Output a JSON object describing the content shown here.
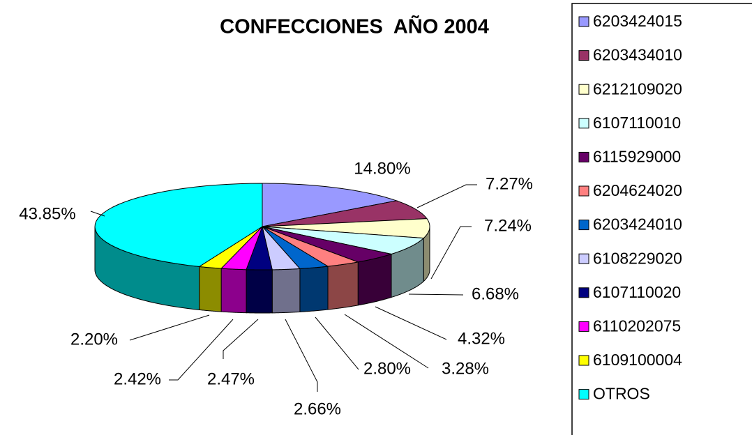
{
  "chart_data": {
    "type": "pie3d",
    "title": "CONFECCIONES  AÑO 2004",
    "categories": [
      "6203424015",
      "6203434010",
      "6212109020",
      "6107110010",
      "6115929000",
      "6204624020",
      "6203424010",
      "6108229020",
      "6107110020",
      "6110202075",
      "6109100004",
      "OTROS"
    ],
    "values": [
      14.8,
      7.27,
      7.24,
      6.68,
      4.32,
      3.28,
      2.8,
      2.66,
      2.47,
      2.42,
      2.2,
      43.85
    ],
    "value_labels": [
      "14.80%",
      "7.27%",
      "7.24%",
      "6.68%",
      "4.32%",
      "3.28%",
      "2.80%",
      "2.66%",
      "2.47%",
      "2.42%",
      "2.20%",
      "43.85%"
    ],
    "colors": [
      "#9999FF",
      "#993366",
      "#FFFFCC",
      "#CCFFFF",
      "#660066",
      "#FF8080",
      "#0066CC",
      "#CCCCFF",
      "#000080",
      "#FF00FF",
      "#FFFF00",
      "#00FFFF"
    ],
    "legend": "right"
  }
}
